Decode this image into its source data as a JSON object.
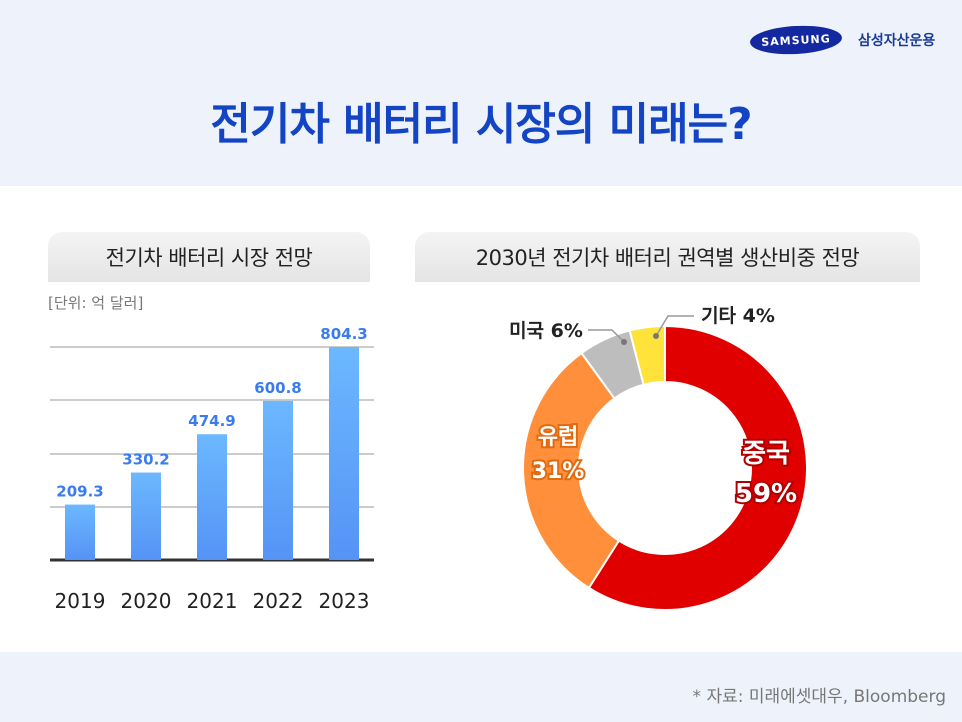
{
  "header": {
    "logo": "SAMSUNG",
    "brand": "삼성자산운용",
    "title": "전기차 배터리 시장의 미래는?"
  },
  "footer": {
    "source": "* 자료: 미래에셋대우, Bloomberg"
  },
  "chart_data": [
    {
      "type": "bar",
      "title": "전기차 배터리 시장 전망",
      "unit": "[단위: 억 달러]",
      "categories": [
        "2019",
        "2020",
        "2021",
        "2022",
        "2023"
      ],
      "values": [
        209.3,
        330.2,
        474.9,
        600.8,
        804.3
      ],
      "value_labels": [
        "209.3",
        "330.2",
        "474.9",
        "600.8",
        "804.3"
      ],
      "grid": true,
      "colors": {
        "bar_top": "#6cb8ff",
        "bar_bottom": "#5593f5",
        "label": "#3a7cf0"
      }
    },
    {
      "type": "pie",
      "donut": true,
      "title": "2030년 전기차 배터리 권역별 생산비중 전망",
      "slices": [
        {
          "label": "중국",
          "value": 59,
          "text": "59%",
          "color": "#e00000"
        },
        {
          "label": "유럽",
          "value": 31,
          "text": "31%",
          "color": "#ff8f3a"
        },
        {
          "label": "미국",
          "value": 6,
          "text": "6%",
          "color": "#bdbdbd"
        },
        {
          "label": "기타",
          "value": 4,
          "text": "4%",
          "color": "#ffe23a"
        }
      ]
    }
  ]
}
